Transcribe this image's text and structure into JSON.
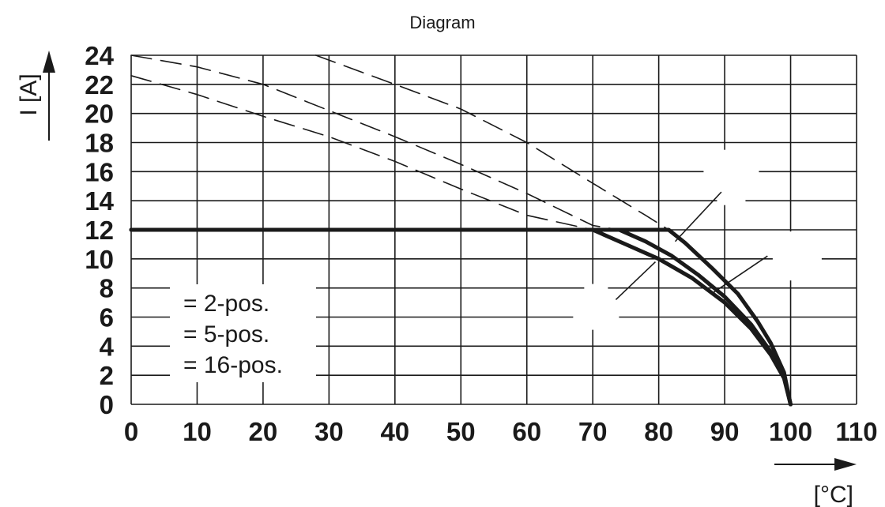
{
  "chart_data": {
    "type": "line",
    "title": "Diagram",
    "xlabel": "[°C]",
    "ylabel": "I [A]",
    "xlim": [
      0,
      110
    ],
    "ylim": [
      0,
      24
    ],
    "x_ticks": [
      0,
      10,
      20,
      30,
      40,
      50,
      60,
      70,
      80,
      90,
      100,
      110
    ],
    "y_ticks": [
      0,
      2,
      4,
      6,
      8,
      10,
      12,
      14,
      16,
      18,
      20,
      22,
      24
    ],
    "grid": true,
    "legend": {
      "position": "bottom-left",
      "entries": [
        "= 2-pos.",
        "= 5-pos.",
        "= 16-pos."
      ]
    },
    "series": [
      {
        "style": "solid-thick",
        "points": [
          [
            0,
            12
          ],
          [
            81.5,
            12
          ],
          [
            84,
            11.1
          ],
          [
            88,
            9.4
          ],
          [
            92,
            7.6
          ],
          [
            95,
            5.7
          ],
          [
            97,
            4.2
          ],
          [
            99,
            2.2
          ],
          [
            100,
            0
          ]
        ]
      },
      {
        "style": "solid-thick",
        "points": [
          [
            0,
            12
          ],
          [
            74,
            12
          ],
          [
            78,
            11.2
          ],
          [
            82,
            10.2
          ],
          [
            86,
            8.9
          ],
          [
            90,
            7.4
          ],
          [
            94,
            5.5
          ],
          [
            97,
            3.6
          ],
          [
            99,
            2.0
          ],
          [
            100,
            0
          ]
        ]
      },
      {
        "style": "solid-thick",
        "points": [
          [
            0,
            12
          ],
          [
            70,
            12
          ],
          [
            75,
            11.0
          ],
          [
            80,
            10.0
          ],
          [
            85,
            8.7
          ],
          [
            90,
            7.0
          ],
          [
            94,
            5.2
          ],
          [
            97,
            3.4
          ],
          [
            99,
            1.8
          ],
          [
            100,
            0
          ]
        ]
      },
      {
        "style": "dashed",
        "points": [
          [
            28,
            24
          ],
          [
            40,
            22
          ],
          [
            50,
            20.3
          ],
          [
            60,
            18
          ],
          [
            70,
            15.2
          ],
          [
            78,
            13
          ],
          [
            81.5,
            12
          ]
        ]
      },
      {
        "style": "dashed",
        "points": [
          [
            0,
            24
          ],
          [
            10,
            23.2
          ],
          [
            20,
            22
          ],
          [
            30,
            20.2
          ],
          [
            40,
            18.4
          ],
          [
            50,
            16.5
          ],
          [
            60,
            14.5
          ],
          [
            70,
            12.3
          ],
          [
            74,
            12
          ]
        ]
      },
      {
        "style": "dashed",
        "points": [
          [
            0,
            22.6
          ],
          [
            10,
            21.3
          ],
          [
            20,
            19.8
          ],
          [
            30,
            18.4
          ],
          [
            40,
            16.7
          ],
          [
            50,
            14.8
          ],
          [
            60,
            13
          ],
          [
            70,
            12
          ]
        ]
      }
    ]
  }
}
